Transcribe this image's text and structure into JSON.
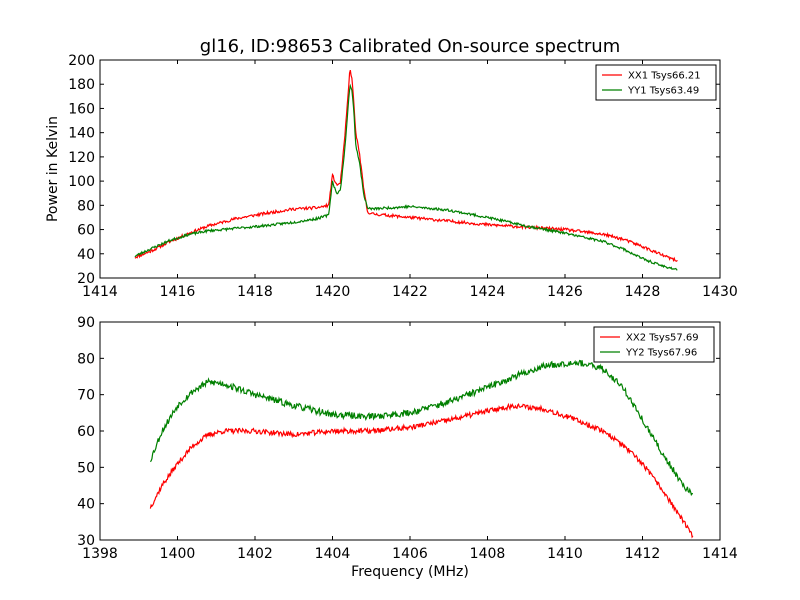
{
  "chart_data": [
    {
      "type": "line",
      "title": "gl16, ID:98653 Calibrated On-source spectrum",
      "xlabel": "",
      "ylabel": "Power in Kelvin",
      "xlim": [
        1414,
        1430
      ],
      "ylim": [
        20,
        200
      ],
      "xticks": [
        1414,
        1416,
        1418,
        1420,
        1422,
        1424,
        1426,
        1428,
        1430
      ],
      "yticks": [
        20,
        40,
        60,
        80,
        100,
        120,
        140,
        160,
        180,
        200
      ],
      "legend_position": "top-right",
      "series": [
        {
          "name": "XX1 Tsys66.21",
          "color": "#ff0000",
          "noise": 1.2,
          "seed": 11,
          "x": [
            1414.9,
            1415.3,
            1415.8,
            1416.3,
            1416.8,
            1417.5,
            1418.2,
            1419.0,
            1419.6,
            1419.9,
            1420.0,
            1420.1,
            1420.2,
            1420.3,
            1420.4,
            1420.45,
            1420.5,
            1420.55,
            1420.6,
            1420.7,
            1420.8,
            1420.9,
            1421.0,
            1422.0,
            1423.0,
            1424.0,
            1425.0,
            1426.0,
            1427.0,
            1427.5,
            1428.0,
            1428.5,
            1428.9
          ],
          "y": [
            37,
            42,
            50,
            57,
            63,
            69,
            73,
            77,
            78,
            80,
            105,
            97,
            98,
            130,
            170,
            193,
            185,
            165,
            140,
            122,
            95,
            75,
            73,
            70,
            67,
            64,
            62,
            60,
            56,
            52,
            46,
            39,
            34
          ]
        },
        {
          "name": "YY1 Tsys63.49",
          "color": "#008000",
          "noise": 1.0,
          "seed": 23,
          "x": [
            1414.9,
            1415.3,
            1415.8,
            1416.3,
            1416.8,
            1417.5,
            1418.2,
            1419.0,
            1419.6,
            1419.9,
            1420.0,
            1420.1,
            1420.2,
            1420.3,
            1420.4,
            1420.45,
            1420.5,
            1420.55,
            1420.6,
            1420.7,
            1420.8,
            1420.9,
            1421.0,
            1422.0,
            1423.0,
            1424.0,
            1425.0,
            1426.0,
            1427.0,
            1427.5,
            1428.0,
            1428.5,
            1428.9
          ],
          "y": [
            38,
            44,
            51,
            56,
            59,
            61,
            63,
            66,
            69,
            72,
            100,
            90,
            92,
            120,
            160,
            180,
            175,
            158,
            130,
            115,
            90,
            78,
            77,
            79,
            76,
            70,
            63,
            57,
            50,
            44,
            36,
            30,
            27
          ]
        }
      ]
    },
    {
      "type": "line",
      "title": "",
      "xlabel": "Frequency (MHz)",
      "ylabel": "",
      "xlim": [
        1398,
        1414
      ],
      "ylim": [
        30,
        90
      ],
      "xticks": [
        1398,
        1400,
        1402,
        1404,
        1406,
        1408,
        1410,
        1412,
        1414
      ],
      "yticks": [
        30,
        40,
        50,
        60,
        70,
        80,
        90
      ],
      "legend_position": "top-right",
      "series": [
        {
          "name": "XX2 Tsys57.69",
          "color": "#ff0000",
          "noise": 0.7,
          "seed": 37,
          "x": [
            1399.3,
            1399.6,
            1400.0,
            1400.4,
            1400.8,
            1401.2,
            1402.0,
            1403.0,
            1404.0,
            1405.0,
            1406.0,
            1407.0,
            1408.0,
            1408.7,
            1409.5,
            1410.3,
            1411.0,
            1411.5,
            1412.0,
            1412.5,
            1413.0,
            1413.3
          ],
          "y": [
            39,
            45,
            51,
            56,
            59,
            60,
            60,
            59,
            60,
            60,
            61,
            63,
            65.5,
            67,
            66,
            63,
            60,
            56,
            51,
            44,
            36,
            31
          ]
        },
        {
          "name": "YY2 Tsys67.96",
          "color": "#008000",
          "noise": 0.9,
          "seed": 53,
          "x": [
            1399.3,
            1399.6,
            1400.0,
            1400.4,
            1400.8,
            1401.2,
            1402.0,
            1403.0,
            1404.0,
            1405.0,
            1406.0,
            1407.0,
            1408.0,
            1408.7,
            1409.5,
            1410.3,
            1411.0,
            1411.5,
            1412.0,
            1412.5,
            1413.0,
            1413.3
          ],
          "y": [
            52,
            60,
            67,
            71,
            73.5,
            73,
            70,
            67,
            64.5,
            64,
            65,
            68,
            72,
            75,
            78,
            79,
            77,
            72,
            63,
            54,
            46,
            42
          ]
        }
      ]
    }
  ]
}
